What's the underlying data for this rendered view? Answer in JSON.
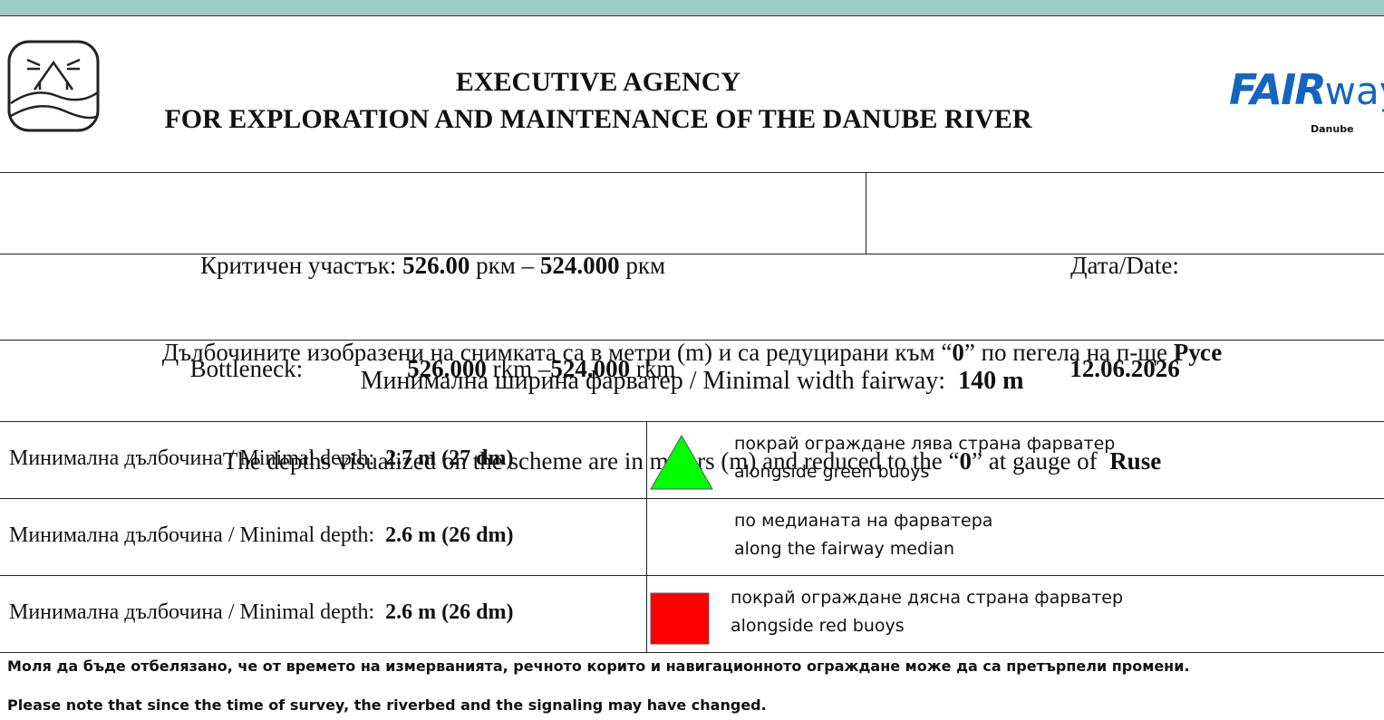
{
  "header": {
    "title": [
      "EXECUTIVE AGENCY",
      "FOR EXPLORATION AND MAINTENANCE OF THE DANUBE RIVER"
    ],
    "logo": {
      "brand_bold": "FAIR",
      "brand_light": "way",
      "sub": "Danube"
    }
  },
  "bottleneck": {
    "lines": [
      [
        {
          "text": "Критичен участък: ",
          "bold": false
        },
        {
          "text": "526.00",
          "bold": true
        },
        {
          "text": " ркм – ",
          "bold": false
        },
        {
          "text": "524.000",
          "bold": true
        },
        {
          "text": " ркм",
          "bold": false
        }
      ],
      [
        {
          "text": "Bottleneck:",
          "bold": false
        },
        {
          "text": "526.000",
          "bold": true
        },
        {
          "text": " rkm –",
          "bold": false
        },
        {
          "text": "524.000",
          "bold": true
        },
        {
          "text": " rkm",
          "bold": false
        }
      ]
    ],
    "date_label": "Дата/Date:",
    "date": "12.06.2026"
  },
  "depths_note": {
    "lines": [
      [
        {
          "text": "Дълбочините изобразени на снимката са в метри (m) и са редуцирани към “",
          "bold": false
        },
        {
          "text": "0",
          "bold": true
        },
        {
          "text": "” по пегела на п-ще ",
          "bold": false
        },
        {
          "text": "Русе",
          "bold": true
        }
      ],
      [
        {
          "text": "The depths visualized on the scheme are in meters (m) and reduced to the “",
          "bold": false
        },
        {
          "text": "0",
          "bold": true
        },
        {
          "text": "” at gauge of  ",
          "bold": false
        },
        {
          "text": "Ruse",
          "bold": true
        }
      ]
    ]
  },
  "min_width": [
    {
      "text": "Минимална ширина фарватер / Minimal width fairway:  ",
      "bold": false
    },
    {
      "text": "140 m",
      "bold": true
    }
  ],
  "depth_rows": [
    {
      "label": [
        {
          "text": "Минимална дълбочина / Minimal depth:  ",
          "bold": false
        },
        {
          "text": "2.7 m (27 dm)",
          "bold": true
        }
      ],
      "icon": "triangle",
      "icon_color": "#00ff00",
      "legend": [
        "покрай ограждане лява страна фарватер",
        "alongside green buoys"
      ]
    },
    {
      "label": [
        {
          "text": "Минимална дълбочина / Minimal depth:  ",
          "bold": false
        },
        {
          "text": "2.6 m (26 dm)",
          "bold": true
        }
      ],
      "icon": "none",
      "icon_color": "none",
      "legend": [
        "по медианата на фарватера",
        "along the fairway median"
      ]
    },
    {
      "label": [
        {
          "text": "Минимална дълбочина / Minimal depth:  ",
          "bold": false
        },
        {
          "text": "2.6 m (26 dm)",
          "bold": true
        }
      ],
      "icon": "square",
      "icon_color": "#ff0000",
      "legend": [
        "покрай ограждане дясна страна фарватер",
        "alongside red buoys"
      ]
    }
  ],
  "notes": [
    "Моля да бъде отбелязано, че от времето на измерванията, речното корито и навигационното ограждане може да са претърпели промени.",
    "Please note that since the time of survey, the riverbed and the signaling may have changed."
  ]
}
